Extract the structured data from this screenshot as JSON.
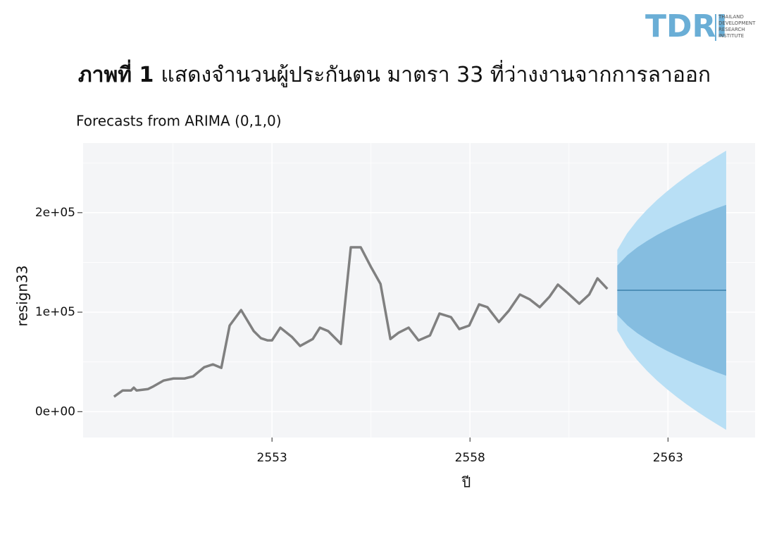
{
  "logo": {
    "mark": "TDRI",
    "lines": [
      "THAILAND",
      "DEVELOPMENT",
      "RESEARCH",
      "INSTITUTE"
    ]
  },
  "chart_data": {
    "type": "line",
    "title_label": "ภาพที่ 1",
    "title": "แสดงจำนวนผู้ประกันตน มาตรา 33 ที่ว่างงานจากการลาออก",
    "subtitle": "Forecasts from ARIMA (0,1,0)",
    "x_label": "ปี",
    "y_label": "resign33",
    "color": "#808080",
    "x": [
      2549.01,
      2549.23,
      2549.44,
      2549.51,
      2549.58,
      2549.87,
      2550.01,
      2550.26,
      2550.51,
      2550.79,
      2551.01,
      2551.29,
      2551.51,
      2551.72,
      2551.93,
      2552.22,
      2552.54,
      2552.72,
      2552.89,
      2553.0,
      2553.21,
      2553.5,
      2553.71,
      2554.03,
      2554.21,
      2554.42,
      2554.74,
      2554.99,
      2555.24,
      2555.49,
      2555.74,
      2555.99,
      2556.2,
      2556.45,
      2556.7,
      2556.99,
      2557.23,
      2557.52,
      2557.73,
      2557.98,
      2558.23,
      2558.44,
      2558.73,
      2558.98,
      2559.26,
      2559.51,
      2559.76,
      2560.01,
      2560.22,
      2560.47,
      2560.76,
      2561.01,
      2561.22,
      2561.47
    ],
    "values": [
      15000,
      21300,
      21300,
      24100,
      21300,
      22700,
      25500,
      31200,
      33300,
      33300,
      35500,
      44700,
      47500,
      44000,
      86500,
      102100,
      80900,
      73800,
      71600,
      71600,
      84400,
      75200,
      66000,
      73000,
      84400,
      80900,
      68100,
      165200,
      165200,
      146100,
      128400,
      73000,
      79400,
      84400,
      71600,
      76600,
      98600,
      95000,
      83000,
      86500,
      107800,
      105000,
      90100,
      101400,
      117700,
      112800,
      105000,
      115600,
      127700,
      119100,
      108500,
      117700,
      134000,
      123400
    ],
    "forecast": {
      "color": "#4d8fb8",
      "x": [
        2561.72,
        2561.97,
        2562.22,
        2562.47,
        2562.72,
        2562.97,
        2563.22,
        2563.47,
        2563.72,
        2563.97,
        2564.22,
        2564.47
      ],
      "values": [
        122000,
        122000,
        122000,
        122000,
        122000,
        122000,
        122000,
        122000,
        122000,
        122000,
        122000,
        122000
      ],
      "bands": [
        {
          "color": "#b8dff5",
          "lower": [
            81500,
            64700,
            51900,
            41000,
            31400,
            22800,
            14800,
            7400,
            500,
            -6100,
            -12300,
            -18300
          ],
          "upper": [
            162500,
            179300,
            192100,
            203000,
            212600,
            221200,
            229200,
            236600,
            243500,
            250100,
            256300,
            262300
          ]
        },
        {
          "color": "#85bde0",
          "lower": [
            97200,
            86900,
            79000,
            72400,
            66500,
            61200,
            56400,
            51900,
            47600,
            43600,
            39700,
            36100
          ],
          "upper": [
            146800,
            157100,
            165000,
            171600,
            177500,
            182800,
            187600,
            192100,
            196400,
            200400,
            204300,
            207900
          ]
        }
      ]
    },
    "xlim": [
      2548.23,
      2565.2
    ],
    "xticks": [
      2553,
      2558,
      2563
    ],
    "ylim": [
      -26000,
      270000
    ],
    "yticks": [
      {
        "value": 0,
        "label": "0e+00"
      },
      {
        "value": 100000,
        "label": "1e+05"
      },
      {
        "value": 200000,
        "label": "2e+05"
      }
    ],
    "grid": true
  }
}
